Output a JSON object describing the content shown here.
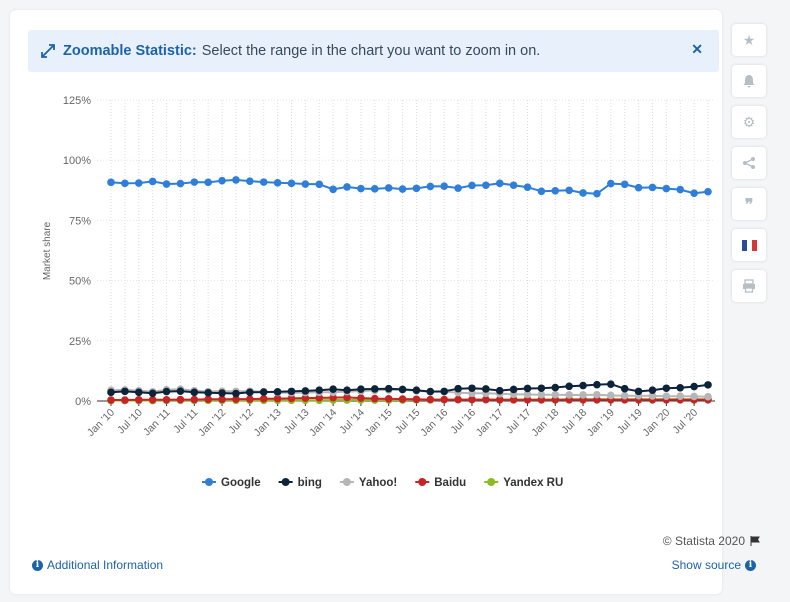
{
  "banner": {
    "title": "Zoomable Statistic:",
    "text": "Select the range in the chart you want to zoom in on.",
    "close_icon": "close-icon",
    "expand_icon": "expand-icon"
  },
  "toolbar": [
    "star-icon",
    "bell-icon",
    "gear-icon",
    "share-icon",
    "quote-icon",
    "flag-fr-icon",
    "print-icon"
  ],
  "footer": {
    "credit": "© Statista 2020",
    "additional_info": "Additional Information",
    "show_source": "Show source"
  },
  "colors": {
    "Google": "#2f7ed8",
    "bing": "#0d233a",
    "Yahoo!": "#b6b6b6",
    "Baidu": "#c42525",
    "Yandex RU": "#8bbc21"
  },
  "chart_data": {
    "type": "line",
    "ylabel": "Market share",
    "xlabel": "",
    "ylim": [
      0,
      125
    ],
    "yticks": [
      "0%",
      "25%",
      "50%",
      "75%",
      "100%",
      "125%"
    ],
    "xtick_labels": [
      "Jan '10",
      "Jul '10",
      "Jan '11",
      "Jul '11",
      "Jan '12",
      "Jul '12",
      "Jan '13",
      "Jul '13",
      "Jan '14",
      "Jul '14",
      "Jan '15",
      "Jul '15",
      "Jan '16",
      "Jul '16",
      "Jan '17",
      "Jul '17",
      "Jan '18",
      "Jul '18",
      "Jan '19",
      "Jul '19",
      "Jan '20",
      "Jul '20"
    ],
    "legend_position": "bottom",
    "series": [
      {
        "name": "Google",
        "values": [
          90.8,
          90.4,
          90.5,
          91.2,
          90.1,
          90.3,
          90.9,
          90.8,
          91.5,
          91.8,
          91.3,
          90.9,
          90.6,
          90.4,
          90.1,
          90.0,
          87.9,
          88.9,
          88.2,
          88.1,
          88.5,
          88.0,
          88.3,
          89.1,
          89.2,
          88.4,
          89.5,
          89.6,
          90.4,
          89.6,
          88.8,
          87.1,
          87.3,
          87.5,
          86.4,
          86.1,
          90.3,
          90.0,
          88.6,
          88.7,
          88.2,
          87.8,
          86.3,
          86.9
        ]
      },
      {
        "name": "bing",
        "values": [
          3.6,
          4.0,
          3.6,
          3.2,
          3.9,
          4.1,
          3.6,
          3.4,
          3.3,
          3.1,
          3.6,
          3.7,
          3.8,
          4.0,
          4.2,
          4.5,
          4.9,
          4.5,
          4.9,
          5.0,
          5.1,
          4.8,
          4.5,
          3.9,
          4.0,
          5.1,
          5.3,
          5.0,
          4.3,
          4.8,
          5.2,
          5.3,
          5.6,
          6.1,
          6.4,
          6.8,
          7.0,
          5.1,
          4.0,
          4.5,
          5.3,
          5.5,
          6.0,
          6.7
        ]
      },
      {
        "name": "Yahoo!",
        "values": [
          4.5,
          4.6,
          4.3,
          3.8,
          4.7,
          4.9,
          4.3,
          3.9,
          4.1,
          4.0,
          4.1,
          3.8,
          3.5,
          3.4,
          3.5,
          3.6,
          3.6,
          3.9,
          4.1,
          4.4,
          4.6,
          4.7,
          4.2,
          3.9,
          3.8,
          3.5,
          3.2,
          3.2,
          3.0,
          2.8,
          2.7,
          2.6,
          2.6,
          2.5,
          2.5,
          2.6,
          2.3,
          2.2,
          2.2,
          2.1,
          2.0,
          2.0,
          1.9,
          1.8
        ]
      },
      {
        "name": "Baidu",
        "values": [
          0.4,
          0.4,
          0.5,
          0.5,
          0.5,
          0.6,
          0.6,
          0.7,
          0.7,
          0.8,
          0.8,
          0.9,
          1.0,
          1.1,
          1.2,
          1.3,
          1.4,
          1.5,
          1.2,
          1.0,
          0.9,
          0.8,
          0.7,
          0.6,
          0.6,
          0.6,
          0.6,
          0.6,
          0.5,
          0.5,
          0.5,
          0.5,
          0.5,
          0.5,
          0.5,
          0.5,
          0.5,
          0.5,
          0.5,
          0.5,
          0.5,
          0.5,
          0.5,
          0.5
        ]
      },
      {
        "name": "Yandex RU",
        "values": [
          0.2,
          0.2,
          0.2,
          0.2,
          0.3,
          0.3,
          0.3,
          0.3,
          0.3,
          0.3,
          0.3,
          0.3,
          0.3,
          0.3,
          0.3,
          0.3,
          0.4,
          0.4,
          0.4,
          0.4,
          0.4,
          0.4,
          0.5,
          0.5,
          0.6,
          0.6,
          0.6,
          0.6,
          0.6,
          0.6,
          0.6,
          0.6,
          0.6,
          0.7,
          0.7,
          0.7,
          0.7,
          0.7,
          0.7,
          0.7,
          0.7,
          0.7,
          0.7,
          0.7
        ]
      }
    ]
  }
}
